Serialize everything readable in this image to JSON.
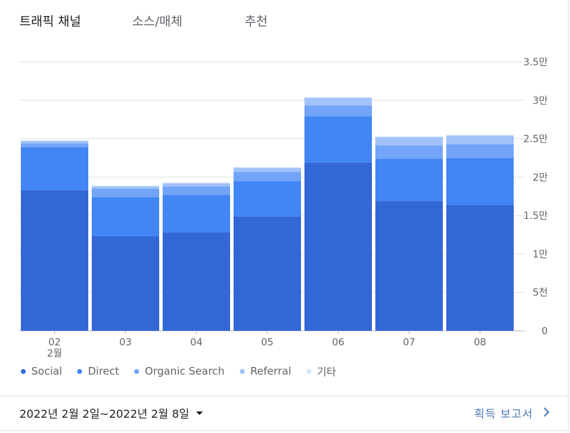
{
  "tabs": [
    {
      "label": "트래픽 채널",
      "active": true
    },
    {
      "label": "소스/매체",
      "active": false
    },
    {
      "label": "추천",
      "active": false
    }
  ],
  "chart_data": {
    "type": "bar",
    "stacked": true,
    "categories": [
      "02",
      "03",
      "04",
      "05",
      "06",
      "07",
      "08"
    ],
    "category_sublabels": [
      "2월",
      "",
      "",
      "",
      "",
      "",
      ""
    ],
    "series": [
      {
        "name": "Social",
        "color": "#3367d6",
        "values": [
          18300,
          12300,
          12800,
          14900,
          21900,
          16900,
          16400
        ]
      },
      {
        "name": "Direct",
        "color": "#4285f4",
        "values": [
          5600,
          5100,
          4900,
          4600,
          6000,
          5500,
          6100
        ]
      },
      {
        "name": "Organic Search",
        "color": "#72a4f7",
        "values": [
          500,
          1100,
          1100,
          1200,
          1400,
          1700,
          1800
        ]
      },
      {
        "name": "Referral",
        "color": "#a1c2fa",
        "values": [
          300,
          300,
          400,
          500,
          1000,
          1100,
          1100
        ]
      },
      {
        "name": "기타",
        "color": "#d2e3fc",
        "values": [
          100,
          100,
          100,
          100,
          100,
          100,
          100
        ]
      }
    ],
    "ylim": [
      0,
      35000
    ],
    "y_ticks": [
      0,
      5000,
      10000,
      15000,
      20000,
      25000,
      30000,
      35000
    ],
    "y_tick_labels": [
      "0",
      "5천",
      "1만",
      "1.5만",
      "2만",
      "2.5만",
      "3만",
      "3.5만"
    ],
    "grid": true,
    "legend_position": "bottom"
  },
  "footer": {
    "date_range": "2022년 2월 2일~2022년 2월 8일",
    "report_link": "획득 보고서"
  }
}
